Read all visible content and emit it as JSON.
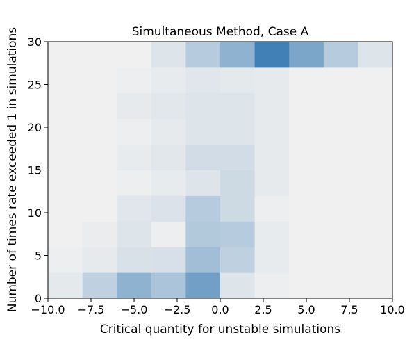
{
  "chart_data": {
    "type": "heatmap",
    "title": "Simultaneous Method, Case A",
    "xlabel": "Critical quantity for unstable simulations",
    "ylabel": "Number of times rate exceeded 1 in simulations",
    "xlim": [
      -10,
      10
    ],
    "ylim": [
      0,
      30
    ],
    "x_ticks": [
      -10,
      -7.5,
      -5,
      -2.5,
      0,
      2.5,
      5,
      7.5,
      10
    ],
    "x_tick_labels": [
      "−10.0",
      "−7.5",
      "−5.0",
      "−2.5",
      "0.0",
      "2.5",
      "5.0",
      "7.5",
      "10.0"
    ],
    "y_ticks": [
      0,
      5,
      10,
      15,
      20,
      25,
      30
    ],
    "y_tick_labels": [
      "0",
      "5",
      "10",
      "15",
      "20",
      "25",
      "30"
    ],
    "x_bin_edges": [
      -10,
      -8,
      -6,
      -4,
      -2,
      0,
      2,
      4,
      6,
      8,
      10
    ],
    "y_bin_edges": [
      0,
      3,
      6,
      9,
      12,
      15,
      18,
      21,
      24,
      27,
      30
    ],
    "values": [
      [
        0.06,
        0.25,
        0.5,
        0.35,
        0.65,
        0.1,
        0.02,
        0.0,
        0.0,
        0.0
      ],
      [
        0.02,
        0.05,
        0.12,
        0.13,
        0.4,
        0.25,
        0.04,
        0.0,
        0.0,
        0.0
      ],
      [
        0.0,
        0.03,
        0.1,
        0.02,
        0.32,
        0.3,
        0.04,
        0.0,
        0.0,
        0.0
      ],
      [
        0.0,
        0.0,
        0.08,
        0.11,
        0.3,
        0.18,
        0.02,
        0.0,
        0.0,
        0.0
      ],
      [
        0.0,
        0.0,
        0.02,
        0.04,
        0.1,
        0.18,
        0.05,
        0.0,
        0.0,
        0.0
      ],
      [
        0.0,
        0.0,
        0.04,
        0.07,
        0.16,
        0.16,
        0.05,
        0.0,
        0.0,
        0.0
      ],
      [
        0.0,
        0.0,
        0.02,
        0.05,
        0.1,
        0.1,
        0.05,
        0.0,
        0.0,
        0.0
      ],
      [
        0.0,
        0.0,
        0.05,
        0.07,
        0.1,
        0.1,
        0.05,
        0.0,
        0.0,
        0.0
      ],
      [
        0.0,
        0.0,
        0.02,
        0.04,
        0.08,
        0.06,
        0.05,
        0.0,
        0.0,
        0.0
      ],
      [
        0.0,
        0.0,
        0.0,
        0.09,
        0.3,
        0.5,
        0.9,
        0.6,
        0.3,
        0.1
      ]
    ],
    "colormap": "Blues",
    "grid": false,
    "legend": "none"
  }
}
